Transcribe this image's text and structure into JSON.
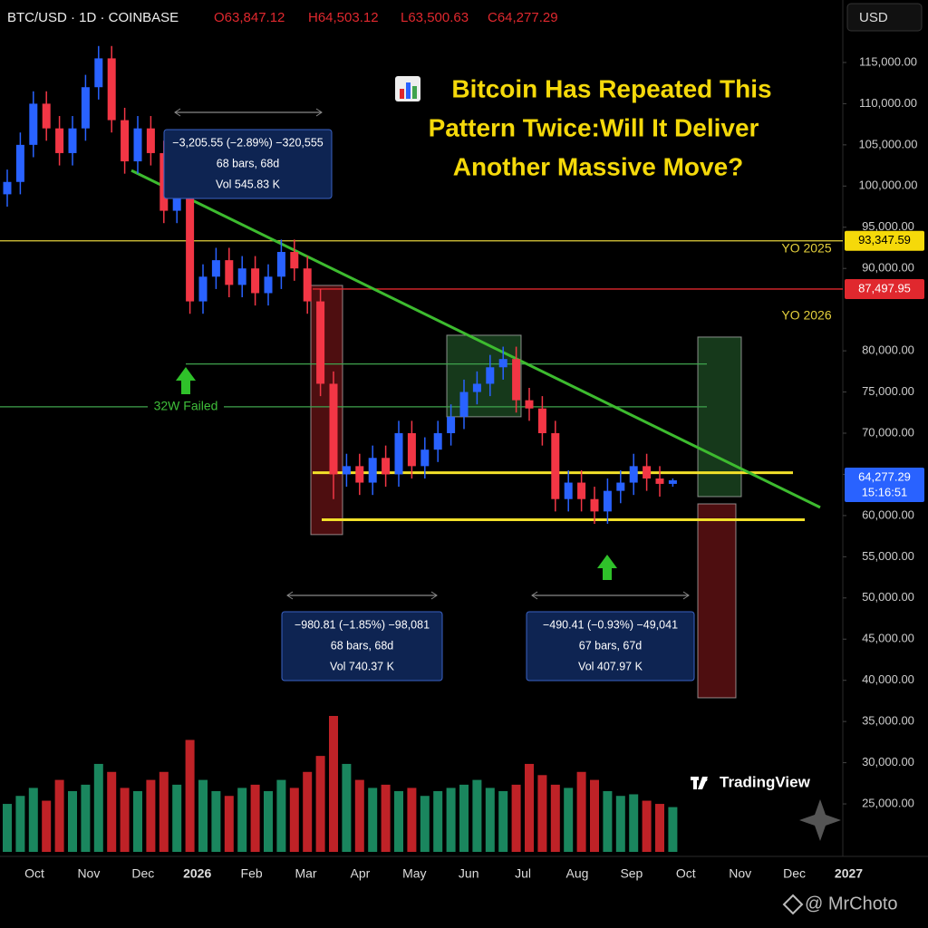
{
  "chart_data": {
    "type": "candlestick",
    "symbol": "BTC/USD · 1D · COINBASE",
    "ohlc_header": [
      "O63,847.12",
      "H64,503.12",
      "L63,500.63",
      "C64,277.29"
    ],
    "currency": "USD",
    "title_lines": [
      "Bitcoin Has Repeated This",
      "Pattern Twice:Will It Deliver",
      "Another Massive Move?"
    ],
    "up_color": "#2962ff",
    "down_color": "#f23645",
    "volume_up_color": "#1f9e6e",
    "volume_down_color": "#e0282e",
    "open": [
      99000,
      100500,
      105000,
      110000,
      107000,
      104000,
      107000,
      112000,
      115500,
      108000,
      103000,
      107000,
      104000,
      97000,
      99000,
      86000,
      89000,
      91000,
      88000,
      90000,
      87000,
      89000,
      92000,
      90000,
      86000,
      76000,
      65000,
      66000,
      64000,
      67000,
      65000,
      70000,
      66000,
      68000,
      70000,
      72000,
      75000,
      76000,
      78000,
      79000,
      74000,
      73000,
      70000,
      62000,
      64000,
      62000,
      60500,
      63000,
      64000,
      66000,
      64500,
      63847.12
    ],
    "high": [
      102000,
      106500,
      111500,
      111500,
      108500,
      108500,
      113500,
      117000,
      117000,
      109500,
      108500,
      108500,
      105500,
      100500,
      100500,
      90500,
      92500,
      92500,
      91500,
      91500,
      90500,
      93500,
      93500,
      91500,
      87500,
      77500,
      67500,
      67500,
      68500,
      68500,
      71500,
      71500,
      69500,
      71500,
      73500,
      76500,
      77500,
      79500,
      80500,
      80500,
      75500,
      74500,
      71500,
      65500,
      65500,
      63500,
      64500,
      65500,
      67500,
      67500,
      66000,
      64503.12
    ],
    "low": [
      97500,
      99000,
      103500,
      105500,
      102500,
      102500,
      105500,
      110500,
      106500,
      101500,
      101500,
      102500,
      95500,
      95500,
      84500,
      84500,
      87500,
      86500,
      86500,
      85500,
      85500,
      87500,
      88500,
      84500,
      74500,
      62000,
      63500,
      62500,
      62500,
      63500,
      63500,
      64500,
      64500,
      66500,
      68500,
      70500,
      73500,
      74500,
      76500,
      72500,
      71500,
      68500,
      60500,
      60500,
      60500,
      59000,
      59000,
      61500,
      62500,
      63000,
      62300,
      63500.63
    ],
    "close": [
      100500,
      105000,
      110000,
      107000,
      104000,
      107000,
      112000,
      115500,
      108000,
      103000,
      107000,
      104000,
      97000,
      99000,
      86000,
      89000,
      91000,
      88000,
      90000,
      87000,
      89000,
      92000,
      90000,
      86000,
      76000,
      65000,
      66000,
      64000,
      67000,
      65000,
      70000,
      66000,
      68000,
      70000,
      72000,
      75000,
      76000,
      78000,
      79000,
      74000,
      73000,
      70000,
      62000,
      64000,
      62000,
      60500,
      63000,
      64000,
      66000,
      64500,
      63847.12,
      64277.29
    ],
    "volume": [
      30,
      35,
      40,
      32,
      45,
      38,
      42,
      55,
      50,
      40,
      38,
      45,
      50,
      42,
      70,
      45,
      38,
      35,
      40,
      42,
      38,
      45,
      40,
      50,
      60,
      85,
      55,
      45,
      40,
      42,
      38,
      40,
      35,
      38,
      40,
      42,
      45,
      40,
      38,
      42,
      55,
      48,
      42,
      40,
      50,
      45,
      38,
      35,
      36,
      32,
      30,
      28
    ],
    "ylim": [
      20000,
      120000
    ],
    "yticks": [
      {
        "value": 25000,
        "label": "25,000.00"
      },
      {
        "value": 30000,
        "label": "30,000.00"
      },
      {
        "value": 35000,
        "label": "35,000.00"
      },
      {
        "value": 40000,
        "label": "40,000.00"
      },
      {
        "value": 45000,
        "label": "45,000.00"
      },
      {
        "value": 50000,
        "label": "50,000.00"
      },
      {
        "value": 55000,
        "label": "55,000.00"
      },
      {
        "value": 60000,
        "label": "60,000.00"
      },
      {
        "value": 65000,
        "label": "65,000.00"
      },
      {
        "value": 70000,
        "label": "70,000.00"
      },
      {
        "value": 75000,
        "label": "75,000.00"
      },
      {
        "value": 80000,
        "label": "80,000.00"
      },
      {
        "value": 90000,
        "label": "90,000.00"
      },
      {
        "value": 95000,
        "label": "95,000.00"
      },
      {
        "value": 100000,
        "label": "100,000.00"
      },
      {
        "value": 105000,
        "label": "105,000.00"
      },
      {
        "value": 110000,
        "label": "110,000.00"
      },
      {
        "value": 115000,
        "label": "115,000.00"
      }
    ],
    "x_labels": [
      "Oct",
      "Nov",
      "Dec",
      "2026",
      "Feb",
      "Mar",
      "Apr",
      "May",
      "Jun",
      "Jul",
      "Aug",
      "Sep",
      "Oct",
      "Nov",
      "Dec",
      "2027"
    ],
    "level_lines": [
      {
        "value": 93347.59,
        "label": "YO 2025",
        "tag": "93,347.59",
        "color": "#e3cf3c"
      },
      {
        "value": 87497.95,
        "label": "YO 2026",
        "tag": "87,497.95",
        "color": "#e0282e"
      },
      {
        "value": 78400,
        "color": "#3fa34d"
      },
      {
        "value": 73200,
        "label": "32W Failed",
        "color": "#3fa34d"
      },
      {
        "value": 65200,
        "color": "#f2e02a"
      },
      {
        "value": 59500,
        "color": "#f2e02a"
      }
    ],
    "trendline": {
      "values": [
        101890,
        60990
      ],
      "color": "#3dbb2f"
    },
    "boxes": [
      {
        "top": 87940,
        "bottom": 57690,
        "color": "#e0282e"
      },
      {
        "top": 81890,
        "bottom": 71990,
        "color": "#3fa34d"
      },
      {
        "top": 81670,
        "bottom": 62300,
        "color": "#3fa34d"
      },
      {
        "top": 61420,
        "bottom": 37880,
        "color": "#e0282e"
      }
    ],
    "measurements": [
      [
        "−3,205.55 (−2.89%) −320,555",
        "68 bars, 68d",
        "Vol 545.83 K"
      ],
      [
        "−980.81 (−1.85%) −98,081",
        "68 bars, 68d",
        "Vol 740.37 K"
      ],
      [
        "−490.41 (−0.93%) −49,041",
        "67 bars, 67d",
        "Vol 407.97 K"
      ]
    ],
    "last_price": {
      "value": 64277.29,
      "label": "64,277.29",
      "countdown": "15:16:51"
    },
    "brand": "TradingView",
    "watermark": "@ MrChoto"
  }
}
